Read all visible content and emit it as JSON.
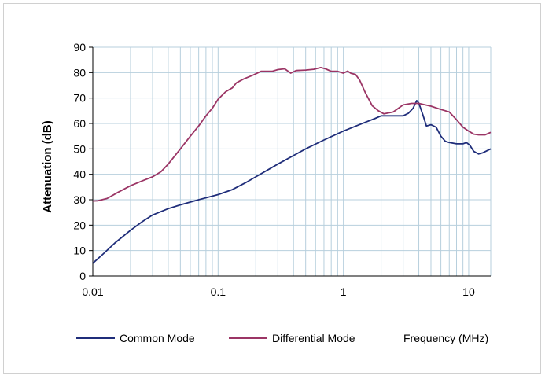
{
  "chart_data": {
    "type": "line",
    "title": "",
    "xlabel": "Frequency (MHz)",
    "ylabel": "Attenuation (dB)",
    "x_scale": "log",
    "xlim": [
      0.01,
      15
    ],
    "ylim": [
      0,
      90
    ],
    "x_ticks": [
      "0.01",
      "0.1",
      "1",
      "10"
    ],
    "y_ticks": [
      "0",
      "10",
      "20",
      "30",
      "40",
      "50",
      "60",
      "70",
      "80",
      "90"
    ],
    "grid": true,
    "legend_position": "bottom",
    "series": [
      {
        "name": "Common Mode",
        "color": "#1f2d7a",
        "points": [
          [
            0.01,
            5
          ],
          [
            0.012,
            8.5
          ],
          [
            0.015,
            13
          ],
          [
            0.02,
            18
          ],
          [
            0.025,
            21.5
          ],
          [
            0.03,
            24
          ],
          [
            0.04,
            26.5
          ],
          [
            0.05,
            28
          ],
          [
            0.07,
            30
          ],
          [
            0.1,
            32
          ],
          [
            0.13,
            34
          ],
          [
            0.17,
            37
          ],
          [
            0.2,
            39
          ],
          [
            0.3,
            44
          ],
          [
            0.5,
            50
          ],
          [
            0.7,
            53.5
          ],
          [
            1.0,
            57
          ],
          [
            1.5,
            60.5
          ],
          [
            1.8,
            62
          ],
          [
            2.0,
            63
          ],
          [
            2.5,
            63
          ],
          [
            3.0,
            63
          ],
          [
            3.3,
            64
          ],
          [
            3.6,
            66
          ],
          [
            3.85,
            69
          ],
          [
            4.0,
            68
          ],
          [
            4.3,
            63.5
          ],
          [
            4.6,
            59
          ],
          [
            5.0,
            59.5
          ],
          [
            5.5,
            58.5
          ],
          [
            6.0,
            55
          ],
          [
            6.5,
            53
          ],
          [
            7.0,
            52.5
          ],
          [
            8.0,
            52
          ],
          [
            9.0,
            52
          ],
          [
            9.6,
            52.5
          ],
          [
            10.2,
            51.5
          ],
          [
            11.0,
            49
          ],
          [
            12.0,
            48
          ],
          [
            13.0,
            48.5
          ],
          [
            15.0,
            50
          ]
        ]
      },
      {
        "name": "Differential Mode",
        "color": "#9b3565",
        "points": [
          [
            0.01,
            29.5
          ],
          [
            0.011,
            29.6
          ],
          [
            0.013,
            30.5
          ],
          [
            0.016,
            33
          ],
          [
            0.02,
            35.5
          ],
          [
            0.025,
            37.5
          ],
          [
            0.03,
            39
          ],
          [
            0.035,
            41
          ],
          [
            0.04,
            44
          ],
          [
            0.05,
            50
          ],
          [
            0.06,
            55
          ],
          [
            0.07,
            59
          ],
          [
            0.08,
            63
          ],
          [
            0.09,
            66
          ],
          [
            0.1,
            69.5
          ],
          [
            0.115,
            72.5
          ],
          [
            0.13,
            74
          ],
          [
            0.14,
            76
          ],
          [
            0.16,
            77.5
          ],
          [
            0.19,
            79
          ],
          [
            0.22,
            80.5
          ],
          [
            0.27,
            80.5
          ],
          [
            0.3,
            81.2
          ],
          [
            0.34,
            81.5
          ],
          [
            0.38,
            79.8
          ],
          [
            0.42,
            80.8
          ],
          [
            0.5,
            81
          ],
          [
            0.58,
            81.3
          ],
          [
            0.66,
            82
          ],
          [
            0.72,
            81.5
          ],
          [
            0.8,
            80.5
          ],
          [
            0.9,
            80.5
          ],
          [
            1.0,
            79.8
          ],
          [
            1.08,
            80.6
          ],
          [
            1.15,
            79.7
          ],
          [
            1.25,
            79.3
          ],
          [
            1.35,
            77
          ],
          [
            1.5,
            72
          ],
          [
            1.7,
            67
          ],
          [
            1.9,
            65
          ],
          [
            2.1,
            63.8
          ],
          [
            2.5,
            64.5
          ],
          [
            3.0,
            67.3
          ],
          [
            3.5,
            67.9
          ],
          [
            4.0,
            67.9
          ],
          [
            5.0,
            66.8
          ],
          [
            6.0,
            65.5
          ],
          [
            7.0,
            64.5
          ],
          [
            8.0,
            61.5
          ],
          [
            9.0,
            58.5
          ],
          [
            10.0,
            57
          ],
          [
            11.0,
            55.8
          ],
          [
            12.0,
            55.5
          ],
          [
            13.5,
            55.5
          ],
          [
            15.0,
            56.5
          ]
        ]
      }
    ]
  }
}
